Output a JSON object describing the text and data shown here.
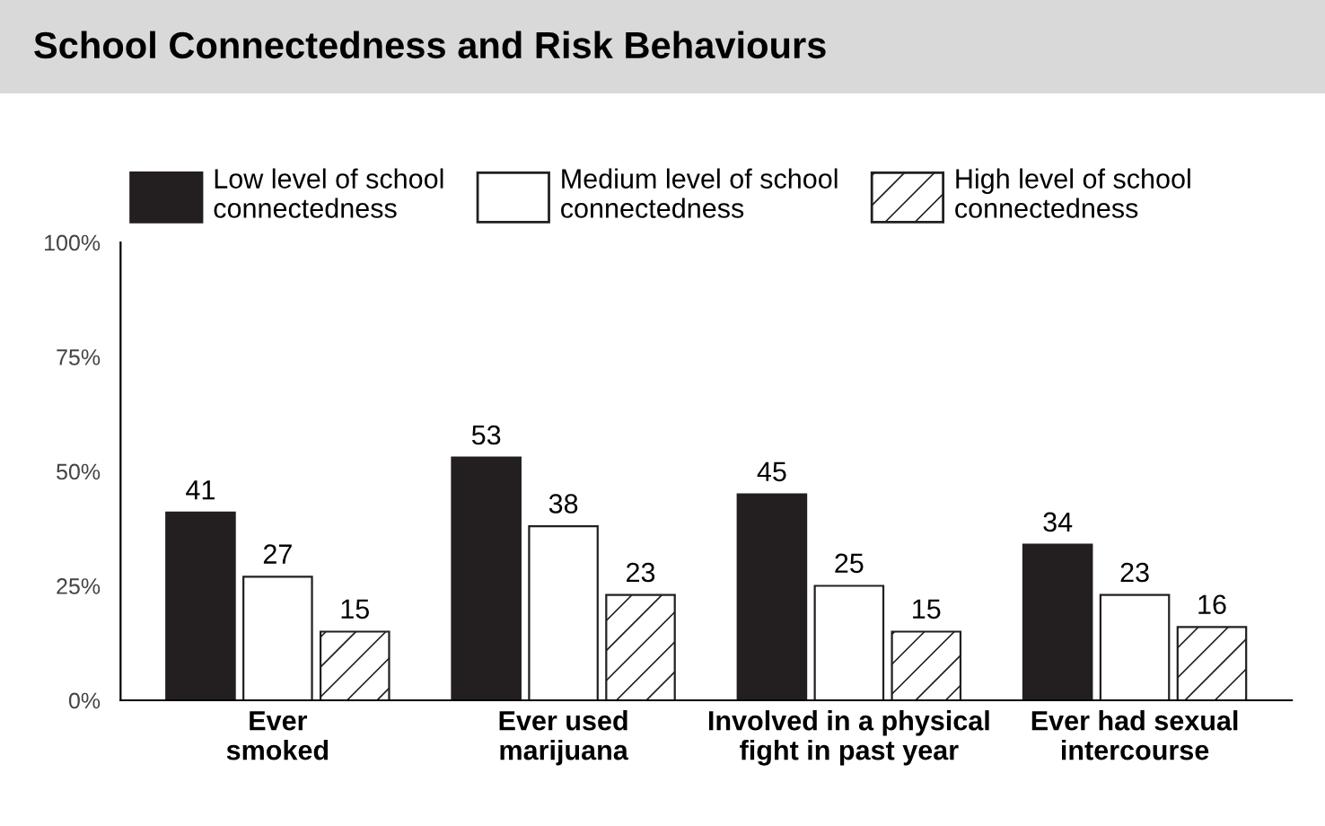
{
  "chart_data": {
    "type": "bar",
    "title": "School Connectedness and Risk Behaviours",
    "categories": [
      "Ever\nsmoked",
      "Ever used\nmarijuana",
      "Involved in a physical\nfight in past year",
      "Ever had sexual\nintercourse"
    ],
    "series": [
      {
        "name": "Low level of school\nconnectedness",
        "color": "#231f20",
        "values": [
          41,
          53,
          45,
          34
        ]
      },
      {
        "name": "Medium level of school\nconnectedness",
        "color": "#ffffff",
        "values": [
          27,
          38,
          25,
          23
        ]
      },
      {
        "name": "High level of school\nconnectedness",
        "color": "#231f20",
        "values": [
          15,
          23,
          15,
          16
        ]
      }
    ],
    "ylim": [
      0,
      100
    ],
    "yticks": [
      {
        "value": 0,
        "label": "0%"
      },
      {
        "value": 25,
        "label": "25%"
      },
      {
        "value": 50,
        "label": "50%"
      },
      {
        "value": 75,
        "label": "75%"
      },
      {
        "value": 100,
        "label": "100%"
      }
    ],
    "data_labels": true,
    "legend": "top",
    "grid": false
  }
}
